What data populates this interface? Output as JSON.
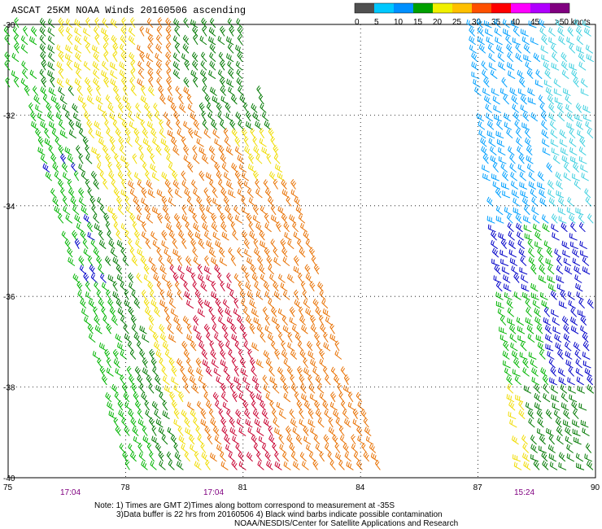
{
  "title": "ASCAT 25KM NOAA Winds 20160506 ascending",
  "legend": {
    "ticks": [
      "0",
      "5",
      "10",
      "15",
      "20",
      "25",
      "30",
      "35",
      "40",
      "45",
      ">50 knots"
    ],
    "colors": [
      "#505050",
      "#00c8ff",
      "#0090ff",
      "#00a000",
      "#f0f000",
      "#ffc000",
      "#ff5000",
      "#ff0000",
      "#ff00ff",
      "#b000ff",
      "#800080"
    ]
  },
  "axes": {
    "lat_labels": [
      "-30",
      "-32",
      "-34",
      "-36",
      "-38",
      "-40"
    ],
    "lon_labels": [
      "75",
      "78",
      "81",
      "84",
      "87",
      "90"
    ]
  },
  "times": [
    "17:04",
    "17:04",
    "15:24"
  ],
  "notes": {
    "line1": "Note: 1) Times are GMT 2)Times along bottom correspond to measurement at -35S",
    "line2": "3)Data buffer is 22 hrs from 20160506 4) Black wind barbs indicate possible contamination",
    "line3": "NOAA/NESDIS/Center for Satellite Applications and Research"
  },
  "map": {
    "lat_range": [
      -40,
      -30
    ],
    "lon_range": [
      75,
      90
    ],
    "grid": "dotted",
    "swath_colors": {
      "calm": "#0000c8",
      "light": "#00a0ff",
      "green": "#00b400",
      "dark_green": "#007800",
      "yellow": "#f0dc00",
      "orange": "#e87000",
      "red": "#c80030"
    }
  }
}
